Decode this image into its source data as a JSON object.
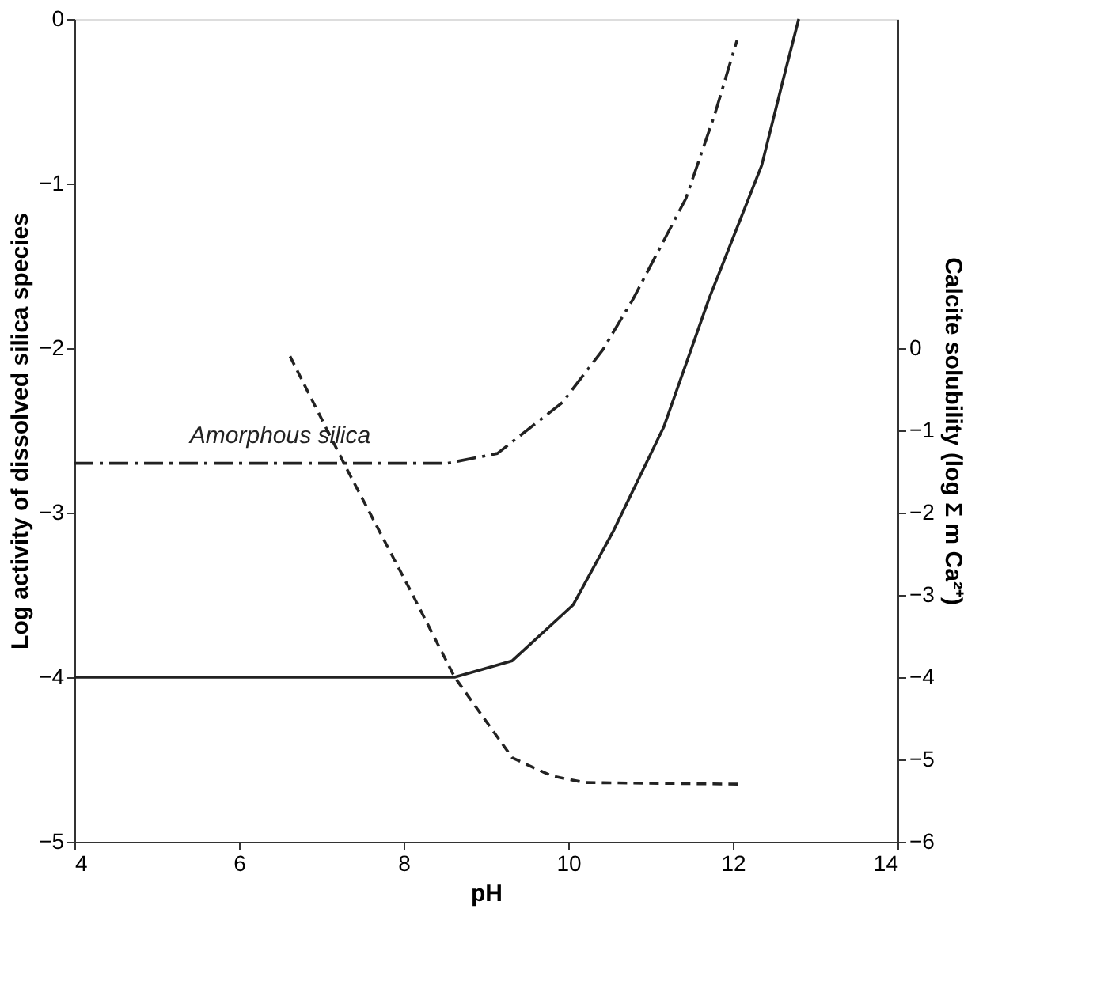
{
  "chart_data": {
    "type": "line",
    "xlabel": "pH",
    "ylabel": "Log activity of dissolved silica species",
    "y2label": "Calcite solubility (log Σ m Ca²⁺)",
    "xlim": [
      4,
      14
    ],
    "xticks": [
      4,
      6,
      8,
      10,
      12,
      14
    ],
    "ylim": [
      -5,
      0
    ],
    "yticks": [
      0,
      -1,
      -2,
      -3,
      -4,
      -5
    ],
    "y2lim": [
      -6,
      4
    ],
    "y2ticks": [
      0,
      -1,
      -2,
      -3,
      -4,
      -5,
      -6
    ],
    "grid": false,
    "legend": false,
    "marker": "none",
    "annotations": [
      "Amorphous silica"
    ],
    "series": [
      {
        "color": "#222222",
        "line_style": "dashdot",
        "x": [
          4,
          8.53,
          9.14,
          9.93,
          10.42,
          10.79,
          11.43,
          11.78,
          12.05
        ],
        "values": [
          -2.7,
          -2.7,
          -2.64,
          -2.33,
          -2.01,
          -1.7,
          -1.09,
          -0.58,
          -0.13
        ]
      },
      {
        "color": "#222222",
        "line_style": "solid",
        "x": [
          4,
          8.62,
          9.32,
          10.06,
          10.55,
          11.16,
          11.71,
          12.35,
          12.61,
          12.8
        ],
        "values": [
          -4,
          -4,
          -3.9,
          -3.56,
          -3.11,
          -2.48,
          -1.7,
          -0.89,
          -0.37,
          0
        ]
      },
      {
        "color": "#222222",
        "line_style": "dashed",
        "axis": "y2",
        "x": [
          6.62,
          7.3,
          8.09,
          8.62,
          9.32,
          9.8,
          10.2,
          12.1
        ],
        "values": [
          -0.1,
          -1.45,
          -2.96,
          -4.0,
          -4.98,
          -5.2,
          -5.28,
          -5.3
        ]
      }
    ]
  }
}
